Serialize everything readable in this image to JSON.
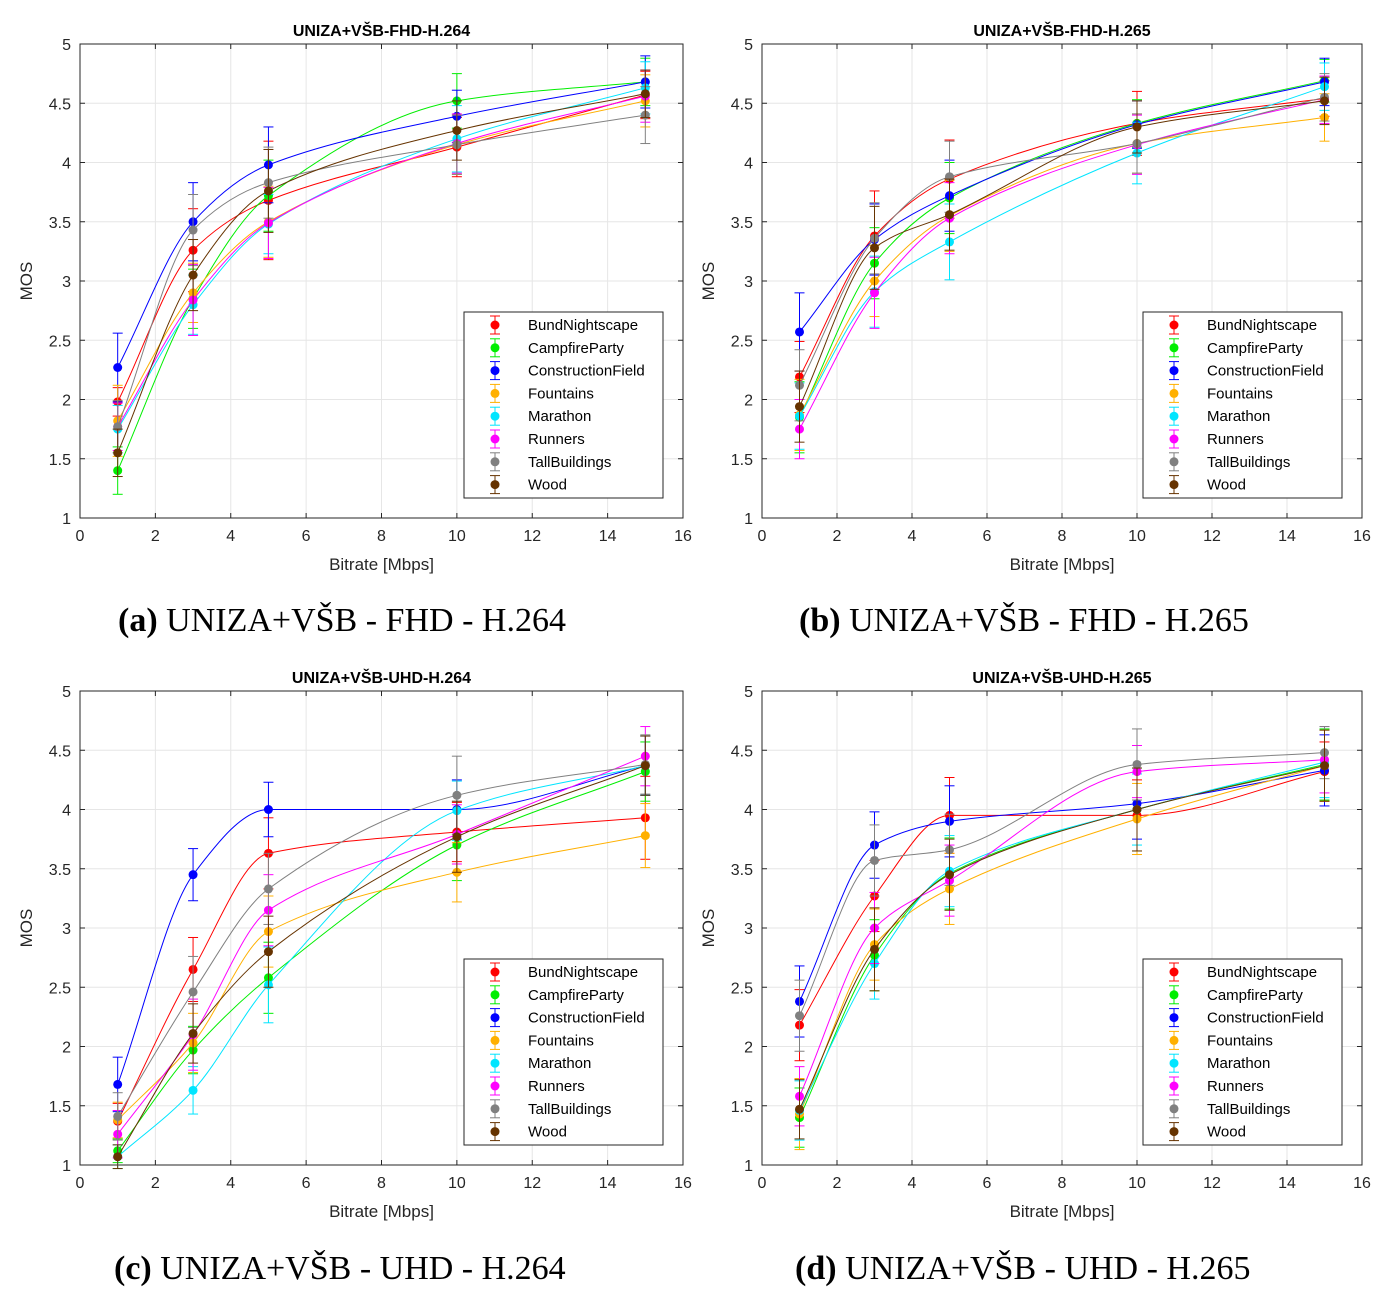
{
  "figure": {
    "captions": [
      {
        "letter": "(a)",
        "text": " UNIZA+VŠB - FHD - H.264"
      },
      {
        "letter": "(b)",
        "text": " UNIZA+VŠB - FHD - H.265"
      },
      {
        "letter": "(c)",
        "text": " UNIZA+VŠB - UHD - H.264"
      },
      {
        "letter": "(d)",
        "text": " UNIZA+VŠB - UHD - H.265"
      }
    ]
  },
  "legend_colors": {
    "BundNightscape": "#ff0000",
    "CampfireParty": "#00ee00",
    "ConstructionField": "#0000ff",
    "Fountains": "#ffb000",
    "Marathon": "#00e5ff",
    "Runners": "#ff00ff",
    "TallBuildings": "#808080",
    "Wood": "#663300"
  },
  "chart_data": [
    {
      "type": "line",
      "title": "UNIZA+VŠB-FHD-H.264",
      "xlabel": "Bitrate [Mbps]",
      "ylabel": "MOS",
      "xlim": [
        0,
        16
      ],
      "ylim": [
        1,
        5
      ],
      "xticks": [
        0,
        2,
        4,
        6,
        8,
        10,
        12,
        14,
        16
      ],
      "yticks": [
        1,
        1.5,
        2,
        2.5,
        3,
        3.5,
        4,
        4.5,
        5
      ],
      "grid": true,
      "legend_position": "lower-right",
      "x": [
        1,
        3,
        5,
        10,
        15
      ],
      "series": [
        {
          "name": "BundNightscape",
          "values": [
            1.98,
            3.26,
            3.68,
            4.13,
            4.57
          ],
          "err": [
            0.12,
            0.35,
            0.5,
            0.25,
            0.2
          ]
        },
        {
          "name": "CampfireParty",
          "values": [
            1.4,
            2.85,
            3.72,
            4.52,
            4.68
          ],
          "err": [
            0.2,
            0.25,
            0.3,
            0.23,
            0.2
          ]
        },
        {
          "name": "ConstructionField",
          "values": [
            2.27,
            3.5,
            3.98,
            4.39,
            4.68
          ],
          "err": [
            0.29,
            0.33,
            0.32,
            0.22,
            0.22
          ]
        },
        {
          "name": "Fountains",
          "values": [
            1.82,
            2.9,
            3.5,
            4.15,
            4.52
          ],
          "err": [
            0.3,
            0.25,
            0.3,
            0.25,
            0.22
          ]
        },
        {
          "name": "Marathon",
          "values": [
            1.75,
            2.8,
            3.48,
            4.2,
            4.63
          ],
          "err": [
            0.2,
            0.25,
            0.25,
            0.28,
            0.22
          ]
        },
        {
          "name": "Runners",
          "values": [
            1.77,
            2.84,
            3.49,
            4.16,
            4.56
          ],
          "err": [
            0.2,
            0.3,
            0.3,
            0.25,
            0.22
          ]
        },
        {
          "name": "TallBuildings",
          "values": [
            1.77,
            3.43,
            3.83,
            4.15,
            4.4
          ],
          "err": [
            0.22,
            0.3,
            0.3,
            0.25,
            0.24
          ]
        },
        {
          "name": "Wood",
          "values": [
            1.55,
            3.05,
            3.76,
            4.27,
            4.58
          ],
          "err": [
            0.2,
            0.3,
            0.35,
            0.25,
            0.2
          ]
        }
      ]
    },
    {
      "type": "line",
      "title": "UNIZA+VŠB-FHD-H.265",
      "xlabel": "Bitrate [Mbps]",
      "ylabel": "MOS",
      "xlim": [
        0,
        16
      ],
      "ylim": [
        1,
        5
      ],
      "xticks": [
        0,
        2,
        4,
        6,
        8,
        10,
        12,
        14,
        16
      ],
      "yticks": [
        1,
        1.5,
        2,
        2.5,
        3,
        3.5,
        4,
        4.5,
        5
      ],
      "grid": true,
      "legend_position": "lower-right",
      "x": [
        1,
        3,
        5,
        10,
        15
      ],
      "series": [
        {
          "name": "BundNightscape",
          "values": [
            2.19,
            3.38,
            3.86,
            4.33,
            4.54
          ],
          "err": [
            0.3,
            0.38,
            0.33,
            0.27,
            0.15
          ]
        },
        {
          "name": "CampfireParty",
          "values": [
            1.85,
            3.15,
            3.7,
            4.33,
            4.69
          ],
          "err": [
            0.3,
            0.3,
            0.3,
            0.2,
            0.18
          ]
        },
        {
          "name": "ConstructionField",
          "values": [
            2.57,
            3.35,
            3.72,
            4.32,
            4.68
          ],
          "err": [
            0.33,
            0.3,
            0.3,
            0.2,
            0.2
          ]
        },
        {
          "name": "Fountains",
          "values": [
            1.87,
            3.0,
            3.55,
            4.16,
            4.38
          ],
          "err": [
            0.3,
            0.3,
            0.3,
            0.25,
            0.2
          ]
        },
        {
          "name": "Marathon",
          "values": [
            1.86,
            2.91,
            3.33,
            4.08,
            4.64
          ],
          "err": [
            0.28,
            0.3,
            0.32,
            0.26,
            0.2
          ]
        },
        {
          "name": "Runners",
          "values": [
            1.75,
            2.9,
            3.53,
            4.15,
            4.53
          ],
          "err": [
            0.25,
            0.3,
            0.3,
            0.25,
            0.2
          ]
        },
        {
          "name": "TallBuildings",
          "values": [
            2.12,
            3.36,
            3.88,
            4.16,
            4.55
          ],
          "err": [
            0.3,
            0.3,
            0.3,
            0.25,
            0.2
          ]
        },
        {
          "name": "Wood",
          "values": [
            1.94,
            3.28,
            3.56,
            4.3,
            4.52
          ],
          "err": [
            0.3,
            0.35,
            0.3,
            0.22,
            0.2
          ]
        }
      ]
    },
    {
      "type": "line",
      "title": "UNIZA+VŠB-UHD-H.264",
      "xlabel": "Bitrate [Mbps]",
      "ylabel": "MOS",
      "xlim": [
        0,
        16
      ],
      "ylim": [
        1,
        5
      ],
      "xticks": [
        0,
        2,
        4,
        6,
        8,
        10,
        12,
        14,
        16
      ],
      "yticks": [
        1,
        1.5,
        2,
        2.5,
        3,
        3.5,
        4,
        4.5,
        5
      ],
      "grid": true,
      "legend_position": "lower-right",
      "x": [
        1,
        3,
        5,
        10,
        15
      ],
      "series": [
        {
          "name": "BundNightscape",
          "values": [
            1.37,
            2.65,
            3.63,
            3.81,
            3.93
          ],
          "err": [
            0.15,
            0.27,
            0.3,
            0.25,
            0.35
          ]
        },
        {
          "name": "CampfireParty",
          "values": [
            1.12,
            1.97,
            2.58,
            3.7,
            4.32
          ],
          "err": [
            0.1,
            0.2,
            0.3,
            0.3,
            0.25
          ]
        },
        {
          "name": "ConstructionField",
          "values": [
            1.68,
            3.45,
            4.0,
            4.0,
            4.37
          ],
          "err": [
            0.23,
            0.22,
            0.23,
            0.25,
            0.25
          ]
        },
        {
          "name": "Fountains",
          "values": [
            1.38,
            2.03,
            2.97,
            3.47,
            3.78
          ],
          "err": [
            0.15,
            0.25,
            0.3,
            0.25,
            0.27
          ]
        },
        {
          "name": "Marathon",
          "values": [
            1.07,
            1.63,
            2.52,
            3.99,
            4.37
          ],
          "err": [
            0.1,
            0.2,
            0.32,
            0.25,
            0.25
          ]
        },
        {
          "name": "Runners",
          "values": [
            1.26,
            2.1,
            3.15,
            3.79,
            4.45
          ],
          "err": [
            0.2,
            0.3,
            0.3,
            0.25,
            0.25
          ]
        },
        {
          "name": "TallBuildings",
          "values": [
            1.41,
            2.46,
            3.33,
            4.12,
            4.38
          ],
          "err": [
            0.2,
            0.3,
            0.3,
            0.33,
            0.25
          ]
        },
        {
          "name": "Wood",
          "values": [
            1.07,
            2.11,
            2.8,
            3.77,
            4.37
          ],
          "err": [
            0.1,
            0.25,
            0.3,
            0.3,
            0.25
          ]
        }
      ]
    },
    {
      "type": "line",
      "title": "UNIZA+VŠB-UHD-H.265",
      "xlabel": "Bitrate [Mbps]",
      "ylabel": "MOS",
      "xlim": [
        0,
        16
      ],
      "ylim": [
        1,
        5
      ],
      "xticks": [
        0,
        2,
        4,
        6,
        8,
        10,
        12,
        14,
        16
      ],
      "yticks": [
        1,
        1.5,
        2,
        2.5,
        3,
        3.5,
        4,
        4.5,
        5
      ],
      "grid": true,
      "legend_position": "lower-right",
      "x": [
        1,
        3,
        5,
        10,
        15
      ],
      "series": [
        {
          "name": "BundNightscape",
          "values": [
            2.18,
            3.27,
            3.95,
            3.95,
            4.32
          ],
          "err": [
            0.3,
            0.3,
            0.32,
            0.3,
            0.25
          ]
        },
        {
          "name": "CampfireParty",
          "values": [
            1.4,
            2.77,
            3.46,
            4.0,
            4.38
          ],
          "err": [
            0.25,
            0.3,
            0.3,
            0.35,
            0.3
          ]
        },
        {
          "name": "ConstructionField",
          "values": [
            2.38,
            3.7,
            3.9,
            4.05,
            4.33
          ],
          "err": [
            0.3,
            0.28,
            0.3,
            0.3,
            0.3
          ]
        },
        {
          "name": "Fountains",
          "values": [
            1.43,
            2.86,
            3.33,
            3.92,
            4.37
          ],
          "err": [
            0.3,
            0.3,
            0.3,
            0.3,
            0.3
          ]
        },
        {
          "name": "Marathon",
          "values": [
            1.46,
            2.7,
            3.48,
            4.0,
            4.4
          ],
          "err": [
            0.25,
            0.3,
            0.3,
            0.3,
            0.3
          ]
        },
        {
          "name": "Runners",
          "values": [
            1.58,
            3.0,
            3.4,
            4.32,
            4.42
          ],
          "err": [
            0.25,
            0.3,
            0.3,
            0.22,
            0.28
          ]
        },
        {
          "name": "TallBuildings",
          "values": [
            2.26,
            3.57,
            3.66,
            4.38,
            4.48
          ],
          "err": [
            0.3,
            0.3,
            0.3,
            0.3,
            0.22
          ]
        },
        {
          "name": "Wood",
          "values": [
            1.47,
            2.82,
            3.45,
            4.0,
            4.37
          ],
          "err": [
            0.25,
            0.35,
            0.3,
            0.35,
            0.3
          ]
        }
      ]
    }
  ]
}
